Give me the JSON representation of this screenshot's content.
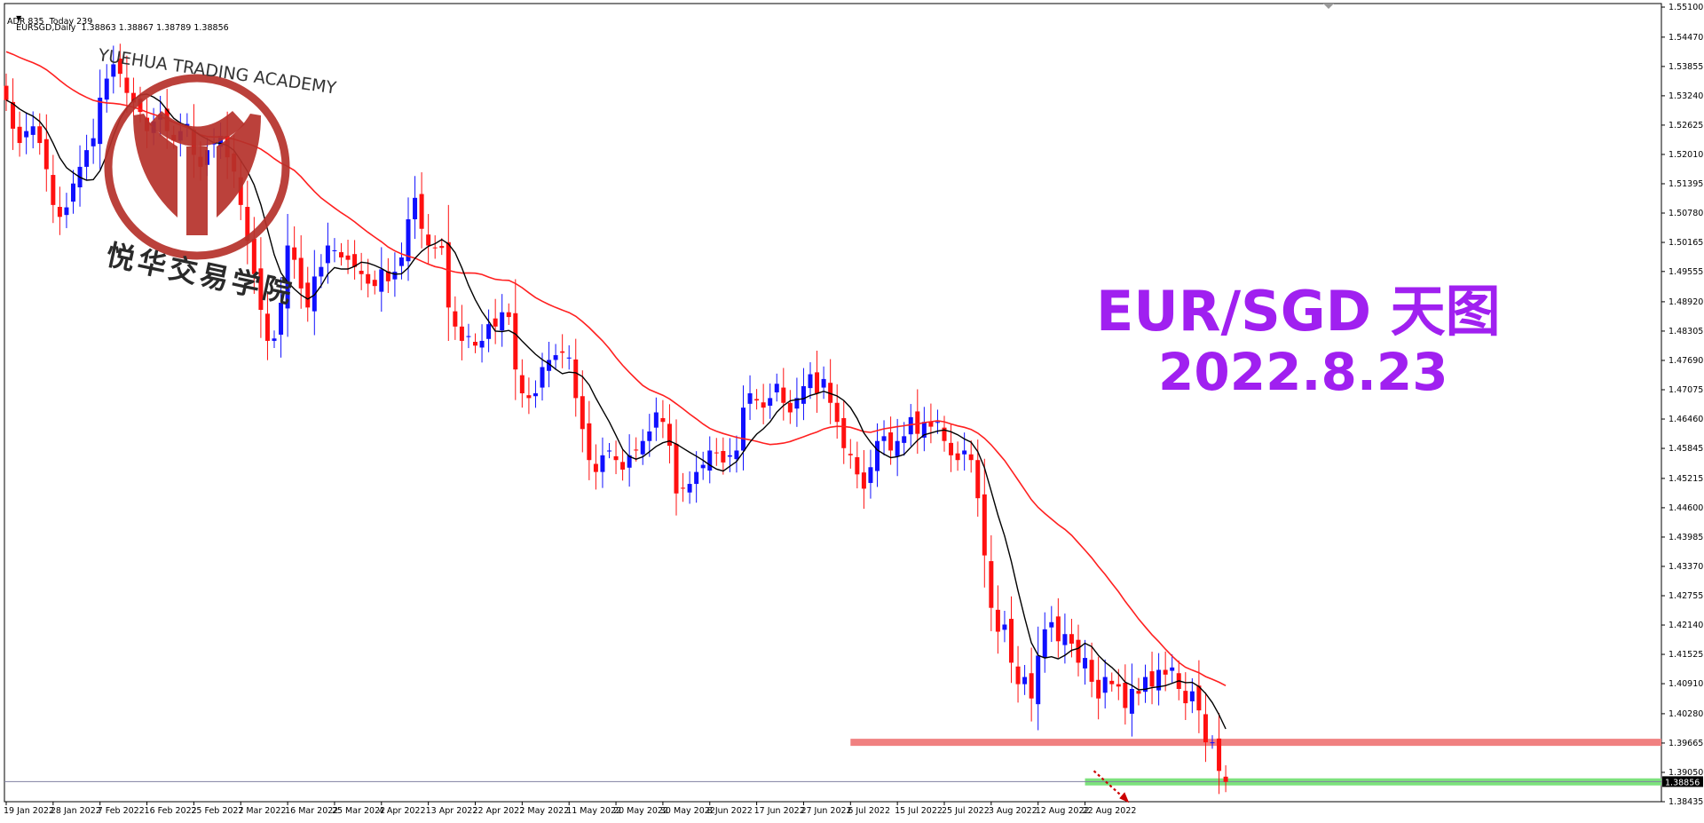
{
  "header": {
    "symbol_line": "EURSGD,Daily  1.38863 1.38867 1.38789 1.38856",
    "adr_line": "ADR 835  Today 239"
  },
  "overlay": {
    "pair_title": "EUR/SGD 天图",
    "date_title": "2022.8.23",
    "watermark_en": "YUEHUA TRADING ACADEMY",
    "watermark_cn": "悦华交易学院"
  },
  "colors": {
    "bull": "#1010ff",
    "bear": "#ff1010",
    "ma_fast": "#000000",
    "ma_slow": "#ff2020",
    "title": "#a020f0",
    "resistance_zone": "#f08080",
    "support_zone": "#7ce27c",
    "price_line": "#8080a0",
    "logo": "#b5312a"
  },
  "chart_data": {
    "type": "candlestick",
    "symbol": "EURSGD",
    "timeframe": "Daily",
    "ylim": [
      1.38435,
      1.551
    ],
    "y_ticks": [
      "1.55100",
      "1.54470",
      "1.53855",
      "1.53240",
      "1.52625",
      "1.52010",
      "1.51395",
      "1.50780",
      "1.50165",
      "1.49555",
      "1.48920",
      "1.48305",
      "1.47690",
      "1.47075",
      "1.46460",
      "1.45845",
      "1.45215",
      "1.44600",
      "1.43985",
      "1.43370",
      "1.42755",
      "1.42140",
      "1.41525",
      "1.40910",
      "1.40280",
      "1.39665",
      "1.39050",
      "1.38435"
    ],
    "x_ticks": [
      "19 Jan 2022",
      "28 Jan 2022",
      "7 Feb 2022",
      "16 Feb 2022",
      "25 Feb 2022",
      "7 Mar 2022",
      "16 Mar 2022",
      "25 Mar 2022",
      "4 Apr 2022",
      "13 Apr 2022",
      "22 Apr 2022",
      "2 May 2022",
      "11 May 2022",
      "20 May 2022",
      "30 May 2022",
      "8 Jun 2022",
      "17 Jun 2022",
      "27 Jun 2022",
      "6 Jul 2022",
      "15 Jul 2022",
      "25 Jul 2022",
      "3 Aug 2022",
      "12 Aug 2022",
      "22 Aug 2022"
    ],
    "current_price": 1.38856,
    "current_price_label": "1.38856",
    "zones": [
      {
        "name": "resistance",
        "from_date": "6 Jul 2022",
        "y": 1.3968
      },
      {
        "name": "support",
        "from_date": "22 Aug 2022",
        "y": 1.3885
      }
    ],
    "projection": {
      "direction": "down",
      "from_date": "22 Aug 2022",
      "from_y": 1.3908,
      "to_date": "25 Aug 2022",
      "to_y": 1.3845
    },
    "closes": [
      1.5315,
      1.5255,
      1.5225,
      1.525,
      1.526,
      1.5225,
      1.517,
      1.5095,
      1.507,
      1.509,
      1.514,
      1.5175,
      1.521,
      1.5235,
      1.532,
      1.536,
      1.539,
      1.537,
      1.533,
      1.531,
      1.529,
      1.525,
      1.527,
      1.5285,
      1.525,
      1.523,
      1.525,
      1.5265,
      1.52,
      1.5175,
      1.521,
      1.5225,
      1.524,
      1.5195,
      1.5165,
      1.5095,
      1.502,
      1.495,
      1.4875,
      1.481,
      1.4815,
      1.489,
      1.501,
      1.498,
      1.492,
      1.488,
      1.4945,
      1.4965,
      1.501,
      1.5,
      1.4985,
      1.498,
      1.4965,
      1.495,
      1.493,
      1.4925,
      1.496,
      1.4935,
      1.4955,
      1.4985,
      1.5065,
      1.511,
      1.5045,
      1.501,
      1.5005,
      1.5005,
      1.488,
      1.484,
      1.481,
      1.482,
      1.48,
      1.481,
      1.4845,
      1.484,
      1.487,
      1.486,
      1.475,
      1.47,
      1.469,
      1.47,
      1.4755,
      1.477,
      1.478,
      1.4785,
      1.4775,
      1.469,
      1.4625,
      1.456,
      1.4535,
      1.457,
      1.458,
      1.456,
      1.454,
      1.457,
      1.458,
      1.46,
      1.462,
      1.466,
      1.464,
      1.459,
      1.449,
      1.45,
      1.451,
      1.4535,
      1.455,
      1.458,
      1.4575,
      1.4555,
      1.457,
      1.458,
      1.467,
      1.47,
      1.4685,
      1.467,
      1.469,
      1.472,
      1.468,
      1.466,
      1.469,
      1.4715,
      1.474,
      1.47,
      1.473,
      1.468,
      1.464,
      1.4585,
      1.457,
      1.453,
      1.45,
      1.4545,
      1.46,
      1.461,
      1.458,
      1.46,
      1.461,
      1.465,
      1.4615,
      1.464,
      1.463,
      1.464,
      1.46,
      1.457,
      1.456,
      1.458,
      1.456,
      1.448,
      1.436,
      1.425,
      1.42,
      1.4215,
      1.4135,
      1.409,
      1.4105,
      1.406,
      1.415,
      1.4205,
      1.422,
      1.418,
      1.4195,
      1.4175,
      1.4135,
      1.4145,
      1.4095,
      1.406,
      1.4105,
      1.409,
      1.4085,
      1.404,
      1.408,
      1.407,
      1.4105,
      1.4085,
      1.412,
      1.411,
      1.4125,
      1.408,
      1.405,
      1.4075,
      1.4035,
      1.3968,
      1.3968,
      1.3908,
      1.3885
    ]
  }
}
